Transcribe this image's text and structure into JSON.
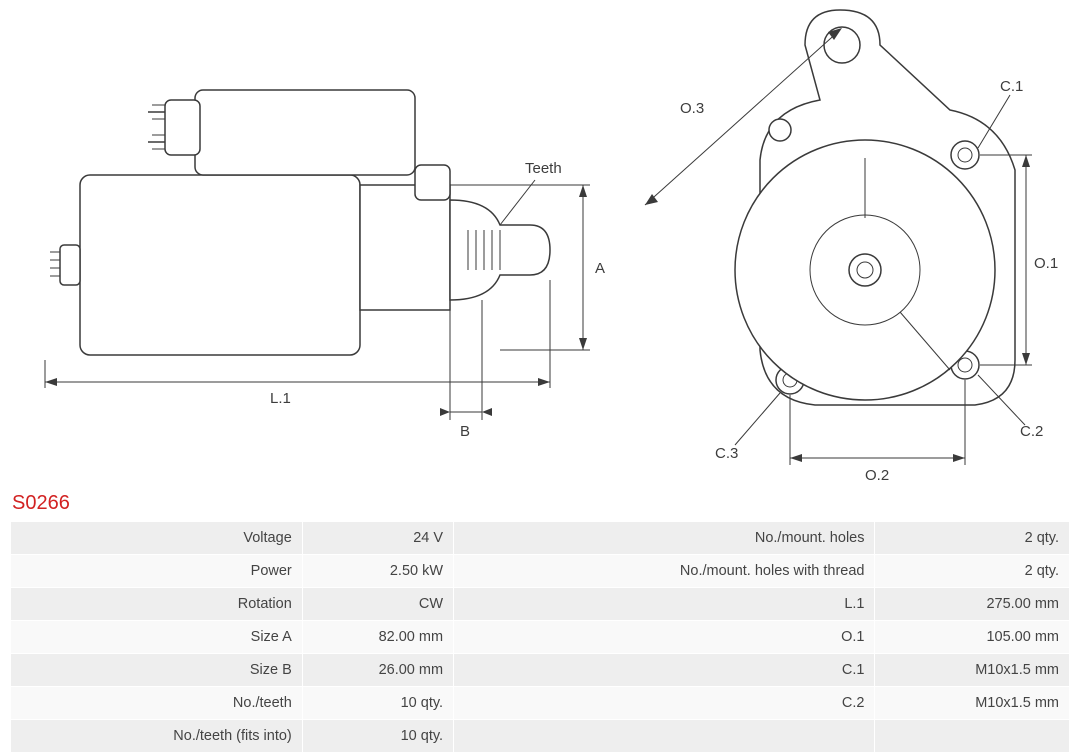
{
  "partNumber": "S0266",
  "diagram": {
    "side": {
      "labels": {
        "teeth": "Teeth",
        "A": "A",
        "B": "B",
        "L1": "L.1"
      }
    },
    "front": {
      "labels": {
        "O1": "O.1",
        "O2": "O.2",
        "O3": "O.3",
        "C1": "C.1",
        "C2": "C.2",
        "C3": "C.3"
      }
    },
    "colors": {
      "stroke": "#3a3a3a",
      "title": "#d22222",
      "rowOdd": "#eeeeee",
      "rowEven": "#f9f9f9",
      "cellBorder": "#ffffff",
      "text": "#444444",
      "background": "#ffffff"
    }
  },
  "specs": {
    "left": [
      {
        "k": "Voltage",
        "v": "24 V"
      },
      {
        "k": "Power",
        "v": "2.50 kW"
      },
      {
        "k": "Rotation",
        "v": "CW"
      },
      {
        "k": "Size A",
        "v": "82.00 mm"
      },
      {
        "k": "Size B",
        "v": "26.00 mm"
      },
      {
        "k": "No./teeth",
        "v": "10 qty."
      },
      {
        "k": "No./teeth (fits into)",
        "v": "10 qty."
      }
    ],
    "right": [
      {
        "k": "No./mount. holes",
        "v": "2 qty."
      },
      {
        "k": "No./mount. holes with thread",
        "v": "2 qty."
      },
      {
        "k": "L.1",
        "v": "275.00 mm"
      },
      {
        "k": "O.1",
        "v": "105.00 mm"
      },
      {
        "k": "C.1",
        "v": "M10x1.5 mm"
      },
      {
        "k": "C.2",
        "v": "M10x1.5 mm"
      },
      {
        "k": "",
        "v": ""
      }
    ]
  }
}
